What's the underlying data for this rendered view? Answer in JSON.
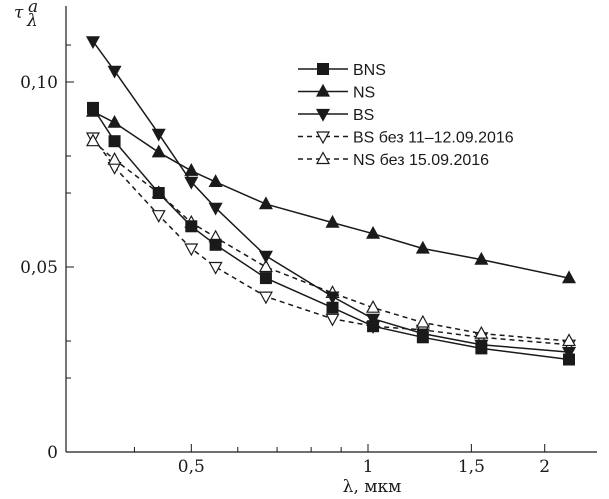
{
  "chart_data": {
    "type": "line",
    "x_scale": "log",
    "xlabel": "λ, мкм",
    "ylabel_main": "τ",
    "ylabel_sup": "a",
    "ylabel_sub": "λ",
    "xlim": [
      0.34,
      2.32
    ],
    "ylim": [
      0,
      0.12
    ],
    "x_ticks": [
      {
        "value": 0.5,
        "label": "0,5"
      },
      {
        "value": 1.0,
        "label": "1"
      },
      {
        "value": 1.5,
        "label": "1,5"
      },
      {
        "value": 2.0,
        "label": "2"
      }
    ],
    "x_minor_ticks": [
      0.4,
      0.6,
      0.7,
      0.8,
      0.9
    ],
    "y_ticks": [
      {
        "value": 0,
        "label": "0"
      },
      {
        "value": 0.05,
        "label": "0,05"
      },
      {
        "value": 0.1,
        "label": "0,10"
      }
    ],
    "y_minor_ticks": [
      0.02,
      0.03,
      0.07,
      0.08,
      0.11
    ],
    "legend_position": "top-right",
    "grid": false,
    "x": [
      0.34,
      0.37,
      0.44,
      0.5,
      0.55,
      0.67,
      0.87,
      1.02,
      1.24,
      1.56,
      2.2
    ],
    "series": [
      {
        "name": "BNS",
        "marker": "square",
        "dashed": false,
        "values": [
          0.093,
          0.084,
          0.07,
          0.061,
          0.056,
          0.047,
          0.039,
          0.034,
          0.031,
          0.028,
          0.025
        ]
      },
      {
        "name": "NS",
        "marker": "triangle-up",
        "dashed": false,
        "values": [
          0.092,
          0.089,
          0.081,
          0.076,
          0.073,
          0.067,
          0.062,
          0.059,
          0.055,
          0.052,
          0.047
        ]
      },
      {
        "name": "BS",
        "marker": "triangle-down",
        "dashed": false,
        "values": [
          0.111,
          0.103,
          0.086,
          0.073,
          0.066,
          0.053,
          0.042,
          0.036,
          0.032,
          0.029,
          0.027
        ]
      },
      {
        "name": "BS без 11–12.09.2016",
        "marker": "triangle-down-open",
        "dashed": true,
        "values": [
          0.085,
          0.077,
          0.064,
          0.055,
          0.05,
          0.042,
          0.036,
          0.034,
          0.033,
          0.031,
          0.029
        ]
      },
      {
        "name": "NS без 15.09.2016",
        "marker": "triangle-up-open",
        "dashed": true,
        "values": [
          0.084,
          0.079,
          0.07,
          0.062,
          0.058,
          0.05,
          0.043,
          0.039,
          0.035,
          0.032,
          0.03
        ]
      }
    ]
  }
}
